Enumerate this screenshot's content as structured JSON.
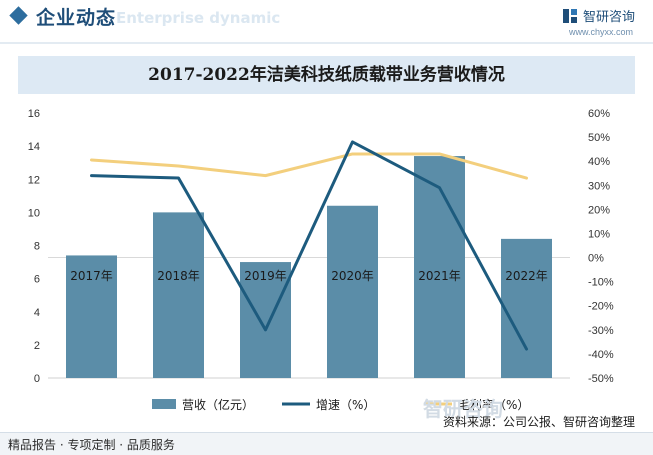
{
  "header": {
    "section_title": "企业动态",
    "section_subtitle": "Enterprise dynamic",
    "brand_name": "智研咨询",
    "brand_url": "www.chyxx.com"
  },
  "chart_data": {
    "type": "bar",
    "title": "2017-2022年洁美科技纸质载带业务营收情况",
    "categories": [
      "2017年",
      "2018年",
      "2019年",
      "2020年",
      "2021年",
      "2022年"
    ],
    "series": [
      {
        "name": "营收（亿元）",
        "kind": "bar",
        "axis": "left",
        "values": [
          7.4,
          10.0,
          7.0,
          10.4,
          13.4,
          8.4
        ],
        "color": "#5b8da8"
      },
      {
        "name": "增速（%）",
        "kind": "line",
        "axis": "right",
        "values": [
          34,
          33,
          -30,
          48,
          29,
          -38
        ],
        "color": "#1d5b7e"
      },
      {
        "name": "毛利率（%）",
        "kind": "line",
        "axis": "right",
        "values": [
          40.5,
          38,
          34,
          43,
          43,
          33
        ],
        "color": "#f3cf7d"
      }
    ],
    "y_left": {
      "lim": [
        0,
        16
      ],
      "ticks": [
        0,
        2,
        4,
        6,
        8,
        10,
        12,
        14,
        16
      ]
    },
    "y_right": {
      "lim": [
        -50,
        60
      ],
      "ticks": [
        -50,
        -40,
        -30,
        -20,
        -10,
        0,
        10,
        20,
        30,
        40,
        50,
        60
      ],
      "tick_suffix": "%"
    },
    "grid": false,
    "legend_position": "bottom"
  },
  "watermark": "智研咨询",
  "footer": {
    "left": "精品报告 · 专项定制 · 品质服务",
    "source": "资料来源：公司公报、智研咨询整理"
  }
}
